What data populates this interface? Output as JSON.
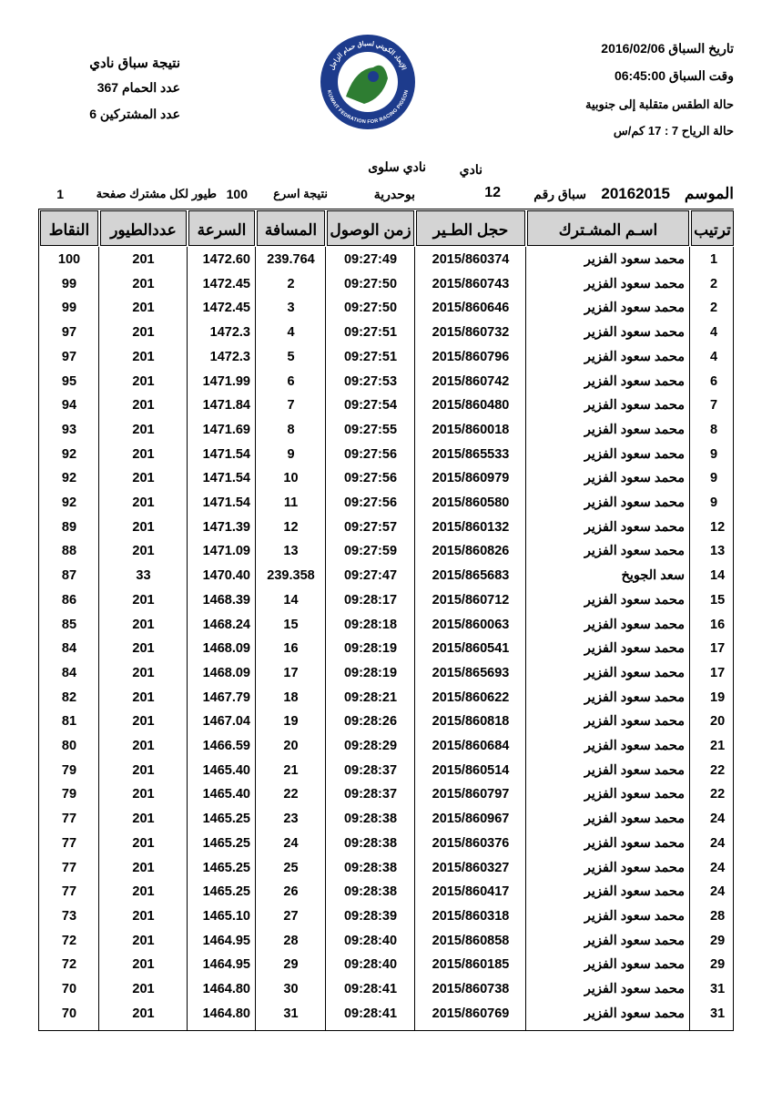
{
  "header": {
    "title": "نتيجة سباق نادي",
    "pigeons": "عدد الحمام 367",
    "participants": "عدد المشتركين 6",
    "date": "تاريخ السباق 2016/02/06",
    "time": "وقت السباق 06:45:00",
    "weather": "حالة الطقس متقلبة إلى جنوبية",
    "wind": "حالة الرياح 7 : 17 كم/س"
  },
  "logo": {
    "arabic": "الإتحاد الكويتي لسباق حمام الزاجل",
    "english": "KUWAIT FEDRATION FOR RACING PIGEON"
  },
  "info": {
    "club_label": "نادي",
    "club": "نادي سلوى",
    "season_label": "الموسم",
    "season": "20162015",
    "race_label": "سباق رقم",
    "race": "12",
    "location": "بوحدرية",
    "note_label": "نتيجة اسرع",
    "fastest": "100",
    "note2": "طيور لكل مشترك صفحة",
    "page": "1"
  },
  "table": {
    "columns": [
      "ترتيب",
      "اسـم المشـترك",
      "حجل الطـير",
      "زمن الوصول",
      "المسافة",
      "السرعة",
      "عددالطيور",
      "النقاط"
    ],
    "rows": [
      [
        "1",
        "محمد سعود الفزير",
        "2015/860374",
        "09:27:49",
        "239.764",
        "1472.60",
        "201",
        "100"
      ],
      [
        "2",
        "محمد سعود الفزير",
        "2015/860743",
        "09:27:50",
        "2",
        "1472.45",
        "201",
        "99"
      ],
      [
        "2",
        "محمد سعود الفزير",
        "2015/860646",
        "09:27:50",
        "3",
        "1472.45",
        "201",
        "99"
      ],
      [
        "4",
        "محمد سعود الفزير",
        "2015/860732",
        "09:27:51",
        "4",
        "1472.3",
        "201",
        "97"
      ],
      [
        "4",
        "محمد سعود الفزير",
        "2015/860796",
        "09:27:51",
        "5",
        "1472.3",
        "201",
        "97"
      ],
      [
        "6",
        "محمد سعود الفزير",
        "2015/860742",
        "09:27:53",
        "6",
        "1471.99",
        "201",
        "95"
      ],
      [
        "7",
        "محمد سعود الفزير",
        "2015/860480",
        "09:27:54",
        "7",
        "1471.84",
        "201",
        "94"
      ],
      [
        "8",
        "محمد سعود الفزير",
        "2015/860018",
        "09:27:55",
        "8",
        "1471.69",
        "201",
        "93"
      ],
      [
        "9",
        "محمد سعود الفزير",
        "2015/865533",
        "09:27:56",
        "9",
        "1471.54",
        "201",
        "92"
      ],
      [
        "9",
        "محمد سعود الفزير",
        "2015/860979",
        "09:27:56",
        "10",
        "1471.54",
        "201",
        "92"
      ],
      [
        "9",
        "محمد سعود الفزير",
        "2015/860580",
        "09:27:56",
        "11",
        "1471.54",
        "201",
        "92"
      ],
      [
        "12",
        "محمد سعود الفزير",
        "2015/860132",
        "09:27:57",
        "12",
        "1471.39",
        "201",
        "89"
      ],
      [
        "13",
        "محمد سعود الفزير",
        "2015/860826",
        "09:27:59",
        "13",
        "1471.09",
        "201",
        "88"
      ],
      [
        "14",
        "سعد الجويخ",
        "2015/865683",
        "09:27:47",
        "239.358",
        "1470.40",
        "33",
        "87"
      ],
      [
        "15",
        "محمد سعود الفزير",
        "2015/860712",
        "09:28:17",
        "14",
        "1468.39",
        "201",
        "86"
      ],
      [
        "16",
        "محمد سعود الفزير",
        "2015/860063",
        "09:28:18",
        "15",
        "1468.24",
        "201",
        "85"
      ],
      [
        "17",
        "محمد سعود الفزير",
        "2015/860541",
        "09:28:19",
        "16",
        "1468.09",
        "201",
        "84"
      ],
      [
        "17",
        "محمد سعود الفزير",
        "2015/865693",
        "09:28:19",
        "17",
        "1468.09",
        "201",
        "84"
      ],
      [
        "19",
        "محمد سعود الفزير",
        "2015/860622",
        "09:28:21",
        "18",
        "1467.79",
        "201",
        "82"
      ],
      [
        "20",
        "محمد سعود الفزير",
        "2015/860818",
        "09:28:26",
        "19",
        "1467.04",
        "201",
        "81"
      ],
      [
        "21",
        "محمد سعود الفزير",
        "2015/860684",
        "09:28:29",
        "20",
        "1466.59",
        "201",
        "80"
      ],
      [
        "22",
        "محمد سعود الفزير",
        "2015/860514",
        "09:28:37",
        "21",
        "1465.40",
        "201",
        "79"
      ],
      [
        "22",
        "محمد سعود الفزير",
        "2015/860797",
        "09:28:37",
        "22",
        "1465.40",
        "201",
        "79"
      ],
      [
        "24",
        "محمد سعود الفزير",
        "2015/860967",
        "09:28:38",
        "23",
        "1465.25",
        "201",
        "77"
      ],
      [
        "24",
        "محمد سعود الفزير",
        "2015/860376",
        "09:28:38",
        "24",
        "1465.25",
        "201",
        "77"
      ],
      [
        "24",
        "محمد سعود الفزير",
        "2015/860327",
        "09:28:38",
        "25",
        "1465.25",
        "201",
        "77"
      ],
      [
        "24",
        "محمد سعود الفزير",
        "2015/860417",
        "09:28:38",
        "26",
        "1465.25",
        "201",
        "77"
      ],
      [
        "28",
        "محمد سعود الفزير",
        "2015/860318",
        "09:28:39",
        "27",
        "1465.10",
        "201",
        "73"
      ],
      [
        "29",
        "محمد سعود الفزير",
        "2015/860858",
        "09:28:40",
        "28",
        "1464.95",
        "201",
        "72"
      ],
      [
        "29",
        "محمد سعود الفزير",
        "2015/860185",
        "09:28:40",
        "29",
        "1464.95",
        "201",
        "72"
      ],
      [
        "31",
        "محمد سعود الفزير",
        "2015/860738",
        "09:28:41",
        "30",
        "1464.80",
        "201",
        "70"
      ],
      [
        "31",
        "محمد سعود الفزير",
        "2015/860769",
        "09:28:41",
        "31",
        "1464.80",
        "201",
        "70"
      ]
    ]
  }
}
